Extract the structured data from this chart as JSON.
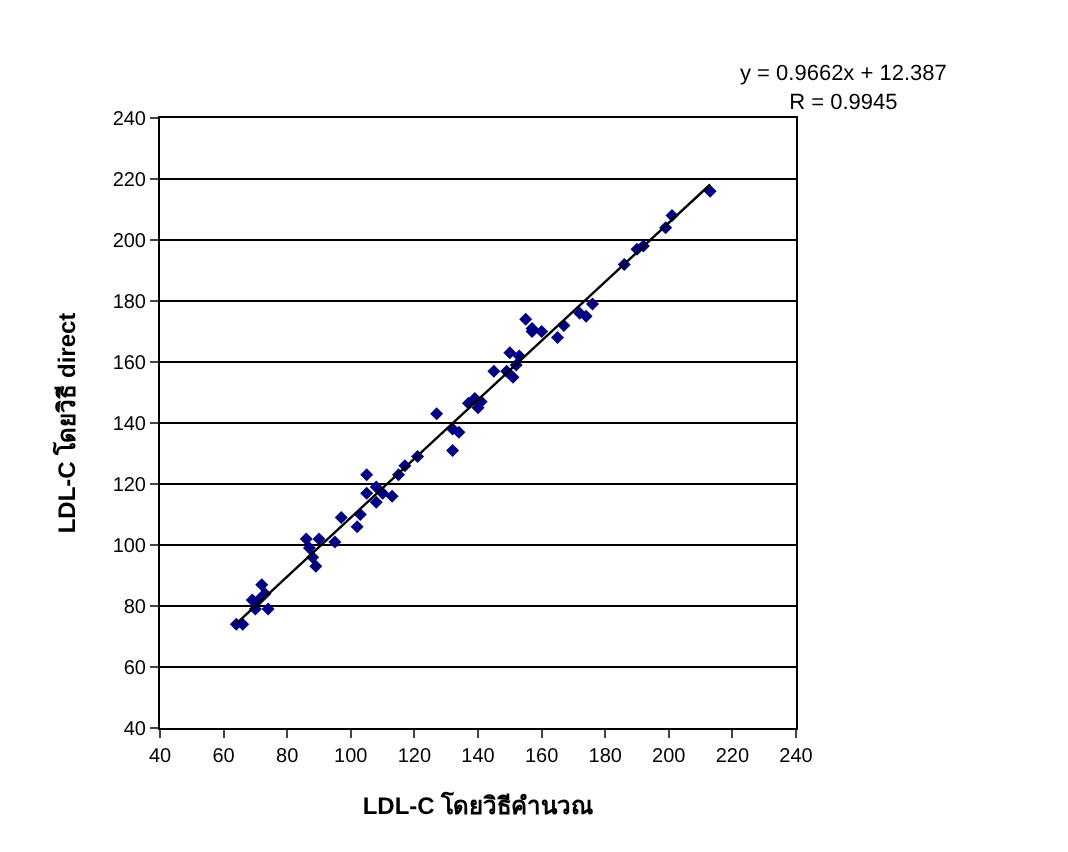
{
  "chart_data": {
    "type": "scatter",
    "xlabel": "LDL-C โดยวิธีคำนวณ",
    "ylabel": "LDL-C โดยวิธี direct",
    "annotations": [
      "y = 0.9662x + 12.387\nR = 0.9945"
    ],
    "xlim": [
      40,
      240
    ],
    "xticks": [
      40,
      60,
      80,
      100,
      120,
      140,
      160,
      180,
      200,
      220,
      240
    ],
    "ylim": [
      40,
      240
    ],
    "yticks": [
      40,
      60,
      80,
      100,
      120,
      140,
      160,
      180,
      200,
      220,
      240
    ],
    "grid": "y",
    "marker": "diamond",
    "series": [
      {
        "color": "#000080",
        "x": [
          64,
          66,
          69,
          72,
          70,
          71,
          73,
          74,
          86,
          87,
          88,
          89,
          90,
          95,
          97,
          102,
          103,
          105,
          105,
          108,
          108,
          110,
          113,
          115,
          117,
          121,
          127,
          132,
          132,
          134,
          137,
          139,
          140,
          141,
          145,
          149,
          150,
          151,
          152,
          153,
          155,
          157,
          157,
          160,
          165,
          167,
          172,
          174,
          176,
          186,
          190,
          192,
          199,
          201,
          213
        ],
        "values": [
          74,
          74,
          82,
          87,
          79,
          82,
          84,
          79,
          102,
          99,
          96,
          93,
          102,
          101,
          109,
          106,
          110,
          123,
          117,
          114,
          119,
          117,
          116,
          123,
          126,
          129,
          143,
          131,
          138,
          137,
          146.5,
          148,
          145,
          147,
          157,
          157,
          163,
          155,
          159,
          162,
          174,
          171,
          170,
          170,
          168,
          172,
          176,
          175,
          179,
          192,
          197,
          198,
          204,
          208,
          216
        ]
      },
      {
        "type": "line",
        "color": "#000000",
        "marker": "none",
        "line_style": "solid",
        "x": [
          64,
          213
        ],
        "values": [
          74.2,
          218.2
        ]
      }
    ]
  }
}
